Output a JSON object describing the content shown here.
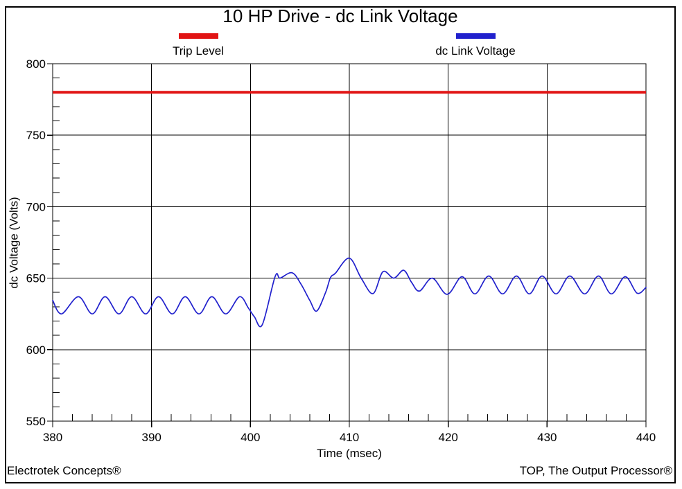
{
  "window": {
    "background_color": "#ffffff",
    "frame_border_color": "#000000"
  },
  "chart_data": {
    "type": "line",
    "title": "10 HP Drive - dc Link Voltage",
    "xlabel": "Time (msec)",
    "ylabel": "dc Voltage (Volts)",
    "xlim": [
      380,
      440
    ],
    "ylim": [
      550,
      800
    ],
    "x_major_ticks": [
      380,
      390,
      400,
      410,
      420,
      430,
      440
    ],
    "x_minor_step": 2,
    "y_major_ticks": [
      550,
      600,
      650,
      700,
      750,
      800
    ],
    "y_minor_step": 10,
    "grid": "major gridlines on, both axes, solid black",
    "legend_position": "top above plot, swatch over label",
    "series": [
      {
        "name": "Trip Level",
        "type": "hline",
        "color": "#e11414",
        "value": 780
      },
      {
        "name": "dc Link Voltage",
        "type": "line",
        "color": "#2121cd",
        "points": [
          [
            380.0,
            634.5
          ],
          [
            380.9,
            625.0
          ],
          [
            382.6,
            637.0
          ],
          [
            384.0,
            625.0
          ],
          [
            385.3,
            637.0
          ],
          [
            386.7,
            625.0
          ],
          [
            388.0,
            637.0
          ],
          [
            389.4,
            625.0
          ],
          [
            390.7,
            637.0
          ],
          [
            392.1,
            625.0
          ],
          [
            393.4,
            637.0
          ],
          [
            394.8,
            625.0
          ],
          [
            396.1,
            637.0
          ],
          [
            397.5,
            625.0
          ],
          [
            398.9,
            637.0
          ],
          [
            399.8,
            629.0
          ],
          [
            400.4,
            623.0
          ],
          [
            401.2,
            617.5
          ],
          [
            402.5,
            651.2
          ],
          [
            403.0,
            650.0
          ],
          [
            404.2,
            653.8
          ],
          [
            405.1,
            646.0
          ],
          [
            406.0,
            634.5
          ],
          [
            406.7,
            627.0
          ],
          [
            407.6,
            640.0
          ],
          [
            408.1,
            650.5
          ],
          [
            408.6,
            653.5
          ],
          [
            410.0,
            664.0
          ],
          [
            411.2,
            650.0
          ],
          [
            412.4,
            639.2
          ],
          [
            413.4,
            654.5
          ],
          [
            414.5,
            650.0
          ],
          [
            415.5,
            655.5
          ],
          [
            416.3,
            647.0
          ],
          [
            417.1,
            641.0
          ],
          [
            418.4,
            650.0
          ],
          [
            419.9,
            638.7
          ],
          [
            421.4,
            651.0
          ],
          [
            422.7,
            639.0
          ],
          [
            424.1,
            651.5
          ],
          [
            425.5,
            639.0
          ],
          [
            426.9,
            651.5
          ],
          [
            428.2,
            639.0
          ],
          [
            429.5,
            651.5
          ],
          [
            430.9,
            639.0
          ],
          [
            432.3,
            651.5
          ],
          [
            433.8,
            639.0
          ],
          [
            435.2,
            651.5
          ],
          [
            436.5,
            639.0
          ],
          [
            437.9,
            651.0
          ],
          [
            439.1,
            639.5
          ],
          [
            440.0,
            643.5
          ]
        ]
      }
    ]
  },
  "footer": {
    "left": "Electrotek Concepts®",
    "right": "TOP, The Output Processor®"
  }
}
